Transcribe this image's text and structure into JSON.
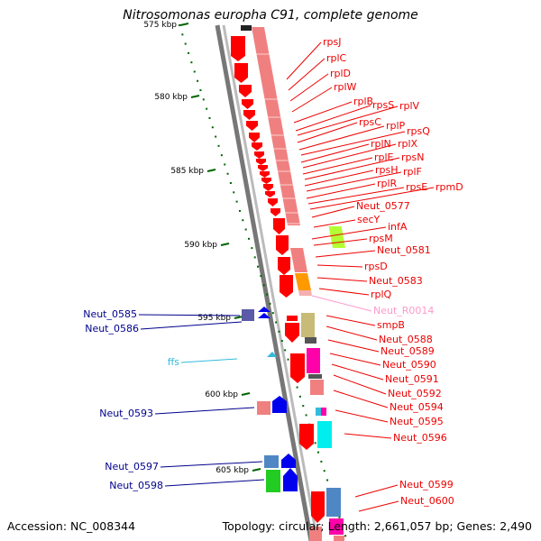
{
  "title": "Nitrosomonas europha C91, complete genome",
  "scale_labels": [
    {
      "kbp": 575,
      "text": "575 kbp"
    },
    {
      "kbp": 580,
      "text": "580 kbp"
    },
    {
      "kbp": 585,
      "text": "585 kbp"
    },
    {
      "kbp": 590,
      "text": "590 kbp"
    },
    {
      "kbp": 595,
      "text": "595 kbp"
    },
    {
      "kbp": 600,
      "text": "600 kbp"
    },
    {
      "kbp": 605,
      "text": "605 kbp"
    }
  ],
  "right_labels": [
    "rpsJ",
    "rplC",
    "rplD",
    "rplW",
    "rplB",
    "rpsS",
    "rplV",
    "rpsC",
    "rplP",
    "rpsQ",
    "rplN",
    "rplX",
    "rplE",
    "rpsN",
    "rpsH",
    "rplF",
    "rplR",
    "rpsE",
    "rpmD",
    "Neut_0577",
    "secY",
    "infA",
    "rpsM",
    "Neut_0581",
    "rpsD",
    "Neut_0583",
    "rplQ",
    "Neut_R0014",
    "smpB",
    "Neut_0588",
    "Neut_0589",
    "Neut_0590",
    "Neut_0591",
    "Neut_0592",
    "Neut_0594",
    "Neut_0595",
    "Neut_0596",
    "Neut_0599",
    "Neut_0600"
  ],
  "left_labels": [
    "Neut_0585",
    "Neut_0586",
    "ffs",
    "Neut_0593",
    "Neut_0597",
    "Neut_0598"
  ],
  "colors": {
    "red_gene": "#ff0000",
    "red_label": "#ee0000",
    "blue_label": "#00008b",
    "pink_label": "#ff99cc",
    "cyan_label": "#33bbdd",
    "salmon": "#f08080",
    "lime": "#b2ff33",
    "orange": "#ff9900",
    "khaki": "#c8bb77",
    "magenta": "#ff00aa",
    "cyan": "#00eeee",
    "steelblue": "#4f87c4",
    "green": "#22cc22",
    "blue": "#0000ee",
    "slate": "#5a5aa8",
    "tick_green": "#006400"
  },
  "footer": {
    "accession": "Accession: NC_008344",
    "summary": "Topology: circular; Length: 2,661,057 bp; Genes: 2,490"
  }
}
